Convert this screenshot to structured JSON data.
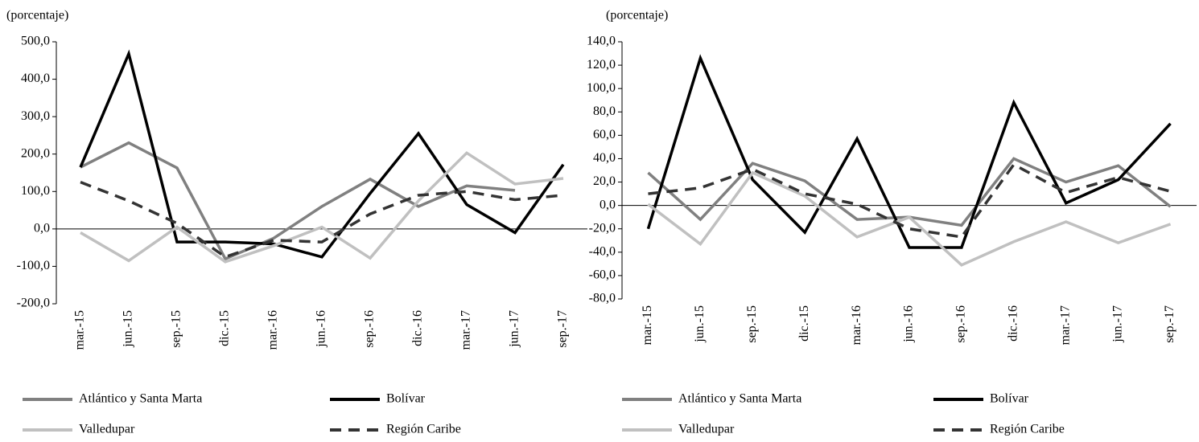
{
  "chart_data": [
    {
      "type": "line",
      "ylabel": "(porcentaje)",
      "categories": [
        "mar.-15",
        "jun.-15",
        "sep.-15",
        "dic.-15",
        "mar.-16",
        "jun.-16",
        "sep.-16",
        "dic.-16",
        "mar.-17",
        "jun.-17",
        "sep.-17"
      ],
      "ylim": [
        -200,
        500
      ],
      "yticks": [
        {
          "value": -200,
          "label": "-200,0"
        },
        {
          "value": -100,
          "label": "-100,0"
        },
        {
          "value": 0,
          "label": "0,0"
        },
        {
          "value": 100,
          "label": "100,0"
        },
        {
          "value": 200,
          "label": "200,0"
        },
        {
          "value": 300,
          "label": "300,0"
        },
        {
          "value": 400,
          "label": "400,0"
        },
        {
          "value": 500,
          "label": "500,0"
        }
      ],
      "series": [
        {
          "name": "Atlántico y Santa Marta",
          "color": "#808080",
          "dashed": false,
          "values": [
            165,
            230,
            163,
            -80,
            -25,
            60,
            133,
            60,
            115,
            103,
            null
          ]
        },
        {
          "name": "Bolívar",
          "color": "#000000",
          "dashed": false,
          "values": [
            165,
            468,
            -35,
            -35,
            -40,
            -75,
            95,
            255,
            65,
            -10,
            172
          ]
        },
        {
          "name": "Valledupar",
          "color": "#c0c0c0",
          "dashed": false,
          "values": [
            -10,
            -85,
            5,
            -88,
            -45,
            5,
            -78,
            75,
            203,
            120,
            135
          ]
        },
        {
          "name": "Región Caribe",
          "color": "#333333",
          "dashed": true,
          "values": [
            125,
            75,
            15,
            -75,
            -30,
            -35,
            40,
            90,
            100,
            78,
            90
          ]
        }
      ]
    },
    {
      "type": "line",
      "ylabel": "(porcentaje)",
      "categories": [
        "mar.-15",
        "jun.-15",
        "sep.-15",
        "dic.-15",
        "mar.-16",
        "jun.-16",
        "sep.-16",
        "dic.-16",
        "mar.-17",
        "jun.-17",
        "sep.-17"
      ],
      "ylim": [
        -80,
        140
      ],
      "yticks": [
        {
          "value": -80,
          "label": "-80,0"
        },
        {
          "value": -60,
          "label": "-60,0"
        },
        {
          "value": -40,
          "label": "-40,0"
        },
        {
          "value": -20,
          "label": "-20,0"
        },
        {
          "value": 0,
          "label": "0,0"
        },
        {
          "value": 20,
          "label": "20,0"
        },
        {
          "value": 40,
          "label": "40,0"
        },
        {
          "value": 60,
          "label": "60,0"
        },
        {
          "value": 80,
          "label": "80,0"
        },
        {
          "value": 100,
          "label": "100,0"
        },
        {
          "value": 120,
          "label": "120,0"
        },
        {
          "value": 140,
          "label": "140,0"
        }
      ],
      "series": [
        {
          "name": "Atlántico y Santa Marta",
          "color": "#808080",
          "dashed": false,
          "values": [
            28,
            -12,
            36,
            21,
            -12,
            -10,
            -17,
            40,
            20,
            34,
            -1
          ]
        },
        {
          "name": "Bolívar",
          "color": "#000000",
          "dashed": false,
          "values": [
            -20,
            126,
            22,
            -23,
            57,
            -36,
            -36,
            88,
            2,
            22,
            70
          ]
        },
        {
          "name": "Valledupar",
          "color": "#c0c0c0",
          "dashed": false,
          "values": [
            1,
            -33,
            28,
            8,
            -27,
            -10,
            -51,
            -31,
            -14,
            -32,
            -16
          ]
        },
        {
          "name": "Región Caribe",
          "color": "#333333",
          "dashed": true,
          "values": [
            10,
            15,
            31,
            10,
            1,
            -20,
            -27,
            35,
            11,
            24,
            12
          ]
        }
      ]
    }
  ]
}
